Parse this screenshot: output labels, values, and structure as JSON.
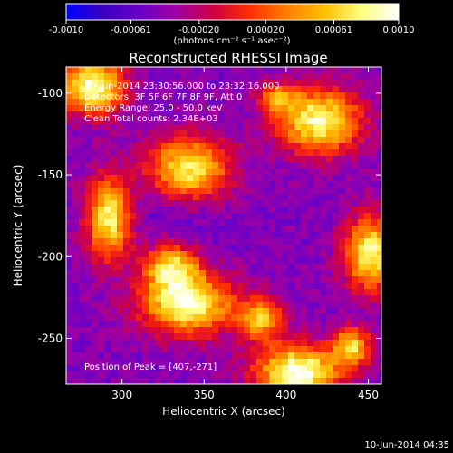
{
  "chart_data": {
    "type": "heatmap",
    "title": "Reconstructed RHESSI Image",
    "xlabel": "Heliocentric X (arcsec)",
    "ylabel": "Heliocentric Y (arcsec)",
    "xlim": [
      266,
      458
    ],
    "ylim": [
      -278,
      -84
    ],
    "x_ticks": [
      300,
      350,
      400,
      450
    ],
    "y_ticks": [
      -100,
      -150,
      -200,
      -250
    ],
    "colorbar": {
      "min": -0.001,
      "max": 0.001,
      "tick_labels": [
        "-0.0010",
        "-0.00061",
        "-0.00020",
        "0.00020",
        "0.00061",
        "0.0010"
      ],
      "unit_label": "(photons cm⁻² s⁻¹ asec⁻²)",
      "colormap": [
        "#0000ff",
        "#3a00c0",
        "#6a00c8",
        "#a000a0",
        "#d00040",
        "#ff3000",
        "#ff8000",
        "#ffc000",
        "#ffff80",
        "#ffffff"
      ]
    },
    "annotations": [
      "10-Jun-2014 23:30:56.000 to 23:32:16.000",
      "Detectors: 3F 5F 6F 7F 8F 9F, Att 0",
      "Energy Range: 25.0 - 50.0 keV",
      "Clean    Total counts: 2.34E+03"
    ],
    "peak_label": "Position of Peak = [407,-271]",
    "peak": {
      "x": 407,
      "y": -271
    },
    "sources": [
      {
        "x": 282,
        "y": -96,
        "intensity": 0.0009,
        "sx": 14,
        "sy": 12
      },
      {
        "x": 292,
        "y": -176,
        "intensity": 0.0008,
        "sx": 10,
        "sy": 18
      },
      {
        "x": 340,
        "y": -147,
        "intensity": 0.00085,
        "sx": 18,
        "sy": 14
      },
      {
        "x": 330,
        "y": -206,
        "intensity": 0.0006,
        "sx": 12,
        "sy": 10
      },
      {
        "x": 340,
        "y": -229,
        "intensity": 0.00088,
        "sx": 20,
        "sy": 13
      },
      {
        "x": 420,
        "y": -117,
        "intensity": 0.00085,
        "sx": 18,
        "sy": 14
      },
      {
        "x": 452,
        "y": -198,
        "intensity": 0.0008,
        "sx": 12,
        "sy": 16
      },
      {
        "x": 385,
        "y": -238,
        "intensity": 0.0005,
        "sx": 10,
        "sy": 9
      },
      {
        "x": 407,
        "y": -271,
        "intensity": 0.001,
        "sx": 18,
        "sy": 12
      },
      {
        "x": 440,
        "y": -255,
        "intensity": 0.0006,
        "sx": 8,
        "sy": 8
      },
      {
        "x": 395,
        "y": -103,
        "intensity": 0.0003,
        "sx": 8,
        "sy": 6
      }
    ],
    "background_level": -0.00045
  },
  "footer_date": "10-Jun-2014 04:35"
}
